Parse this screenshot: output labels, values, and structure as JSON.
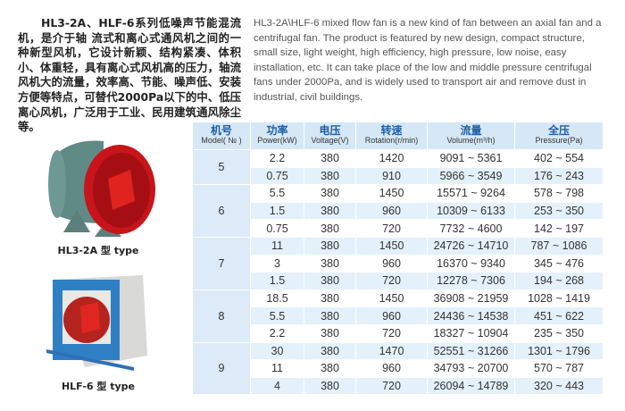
{
  "intro_cn": "HL3-2A、HLF-6系列低噪声节能混流机，是介于轴 流式和离心式通风机之间的一种新型风机，它设计新颖、结构紧凑、体积小、体重轻，具有离心式风机高的压力，轴流风机大的流量，效率高、节能、噪声低、安装方便等特点，可替代2000Pa以下的中、低压离心风机，广泛用于工业、民用建筑通风除尘等。",
  "intro_en": "HL3-2A\\HLF-6 mixed flow fan is a new kind of fan between an axial fan and a centrifugal fan. The product is featured by new design, compact structure, small size, light weight, high efficiency, high pressure, low noise, easy installation, etc. It can take place of the low and middle pressure centrifugal fans under 2000Pa, and is widely used to transport air and remove dust in industrial, civil buildings.",
  "products": [
    {
      "caption": "HL3-2A 型 type"
    },
    {
      "caption": "HLF-6 型 type"
    }
  ],
  "table": {
    "headers": [
      {
        "cn": "机号",
        "en": "Model( № )"
      },
      {
        "cn": "功率",
        "en": "Power(kW)"
      },
      {
        "cn": "电压",
        "en": "Voltage(V)"
      },
      {
        "cn": "转速",
        "en": "Rotation(r/min)"
      },
      {
        "cn": "流量",
        "en": "Volume(m³/h)"
      },
      {
        "cn": "全压",
        "en": "Pressure(Pa)"
      }
    ],
    "groups": [
      {
        "model": "5",
        "rows": [
          [
            "2.2",
            "380",
            "1420",
            "9091 ~ 5361",
            "402 ~ 554"
          ],
          [
            "0.75",
            "380",
            "910",
            "5966 ~ 3549",
            "176 ~ 243"
          ]
        ]
      },
      {
        "model": "6",
        "rows": [
          [
            "5.5",
            "380",
            "1450",
            "15571 ~ 9264",
            "578 ~ 798"
          ],
          [
            "1.5",
            "380",
            "960",
            "10309 ~ 6133",
            "253 ~ 350"
          ],
          [
            "0.75",
            "380",
            "720",
            "7732 ~ 4600",
            "142 ~ 197"
          ]
        ]
      },
      {
        "model": "7",
        "rows": [
          [
            "11",
            "380",
            "1450",
            "24726 ~ 14710",
            "787 ~ 1086"
          ],
          [
            "3",
            "380",
            "960",
            "16370 ~ 9340",
            "345 ~ 476"
          ],
          [
            "1.5",
            "380",
            "720",
            "12278 ~ 7306",
            "194 ~ 268"
          ]
        ]
      },
      {
        "model": "8",
        "rows": [
          [
            "18.5",
            "380",
            "1450",
            "36908 ~ 21959",
            "1028 ~ 1419"
          ],
          [
            "5.5",
            "380",
            "960",
            "24436 ~ 14538",
            "451 ~ 622"
          ],
          [
            "2.2",
            "380",
            "720",
            "18327 ~ 10904",
            "235 ~ 350"
          ]
        ]
      },
      {
        "model": "9",
        "rows": [
          [
            "30",
            "380",
            "1470",
            "52551 ~ 31266",
            "1301 ~ 1796"
          ],
          [
            "11",
            "380",
            "960",
            "34793 ~ 20700",
            "570 ~ 787"
          ],
          [
            "4",
            "380",
            "720",
            "26094 ~ 14789",
            "320 ~ 443"
          ]
        ]
      }
    ]
  }
}
